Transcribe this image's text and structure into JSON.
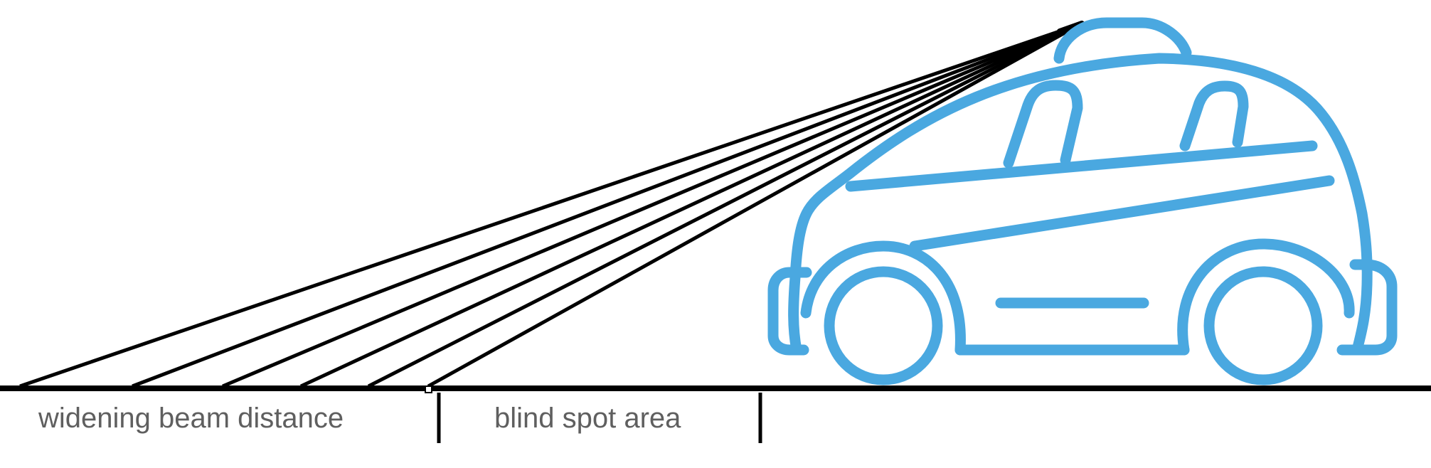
{
  "labels": {
    "widening": "widening beam distance",
    "blind_spot": "blind spot area"
  },
  "colors": {
    "car": "#4AA8E0",
    "beam": "#000000",
    "ground": "#000000",
    "label": "#5f5f5f"
  },
  "icons": {
    "car": "self-driving-car-icon",
    "sensor": "lidar-sensor-icon"
  }
}
